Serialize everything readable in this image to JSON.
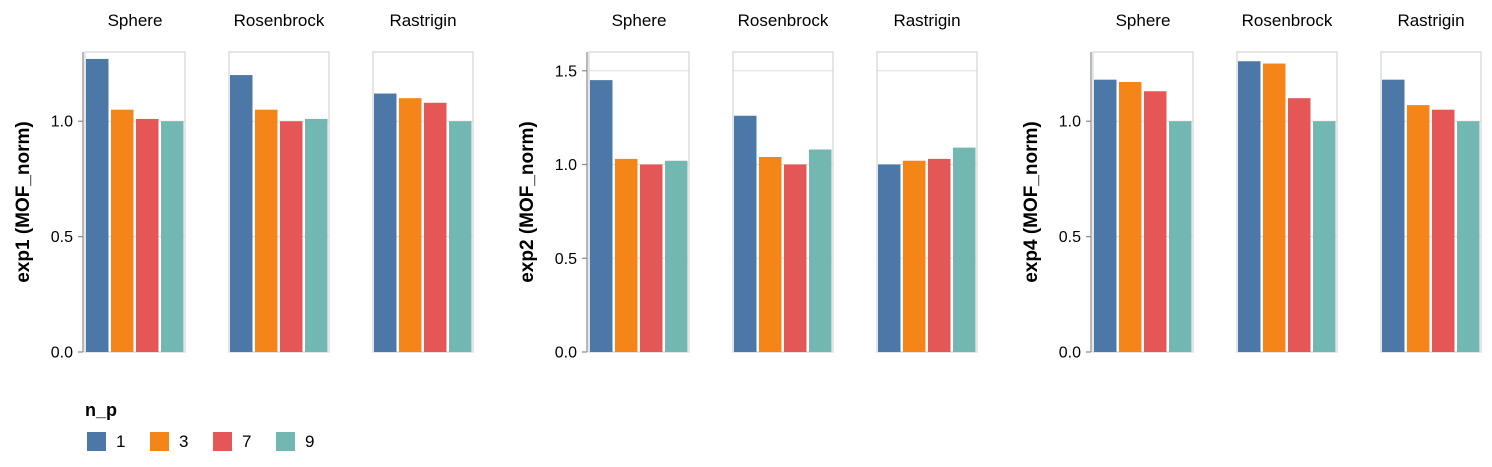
{
  "legend": {
    "title": "n_p",
    "items": [
      {
        "label": "1",
        "color": "#4c78a8"
      },
      {
        "label": "3",
        "color": "#f58518"
      },
      {
        "label": "7",
        "color": "#e45756"
      },
      {
        "label": "9",
        "color": "#72b7b2"
      }
    ]
  },
  "chart_data": [
    {
      "type": "bar",
      "ylabel": "exp1 (MOF_norm)",
      "ylim": [
        0,
        1.3
      ],
      "yticks": [
        "0.0",
        "0.5",
        "1.0"
      ],
      "grid": true,
      "facets": [
        {
          "title": "Sphere",
          "values": [
            1.27,
            1.05,
            1.01,
            1.0
          ]
        },
        {
          "title": "Rosenbrock",
          "values": [
            1.2,
            1.05,
            1.0,
            1.01
          ]
        },
        {
          "title": "Rastrigin",
          "values": [
            1.12,
            1.1,
            1.08,
            1.0
          ]
        }
      ]
    },
    {
      "type": "bar",
      "ylabel": "exp2 (MOF_norm)",
      "ylim": [
        0,
        1.6
      ],
      "yticks": [
        "0.0",
        "0.5",
        "1.0",
        "1.5"
      ],
      "grid": true,
      "facets": [
        {
          "title": "Sphere",
          "values": [
            1.45,
            1.03,
            1.0,
            1.02
          ]
        },
        {
          "title": "Rosenbrock",
          "values": [
            1.26,
            1.04,
            1.0,
            1.08
          ]
        },
        {
          "title": "Rastrigin",
          "values": [
            1.0,
            1.02,
            1.03,
            1.09
          ]
        }
      ]
    },
    {
      "type": "bar",
      "ylabel": "exp4 (MOF_norm)",
      "ylim": [
        0,
        1.3
      ],
      "yticks": [
        "0.0",
        "0.5",
        "1.0"
      ],
      "grid": true,
      "facets": [
        {
          "title": "Sphere",
          "values": [
            1.18,
            1.17,
            1.13,
            1.0
          ]
        },
        {
          "title": "Rosenbrock",
          "values": [
            1.26,
            1.25,
            1.1,
            1.0
          ]
        },
        {
          "title": "Rastrigin",
          "values": [
            1.18,
            1.07,
            1.05,
            1.0
          ]
        }
      ]
    }
  ]
}
